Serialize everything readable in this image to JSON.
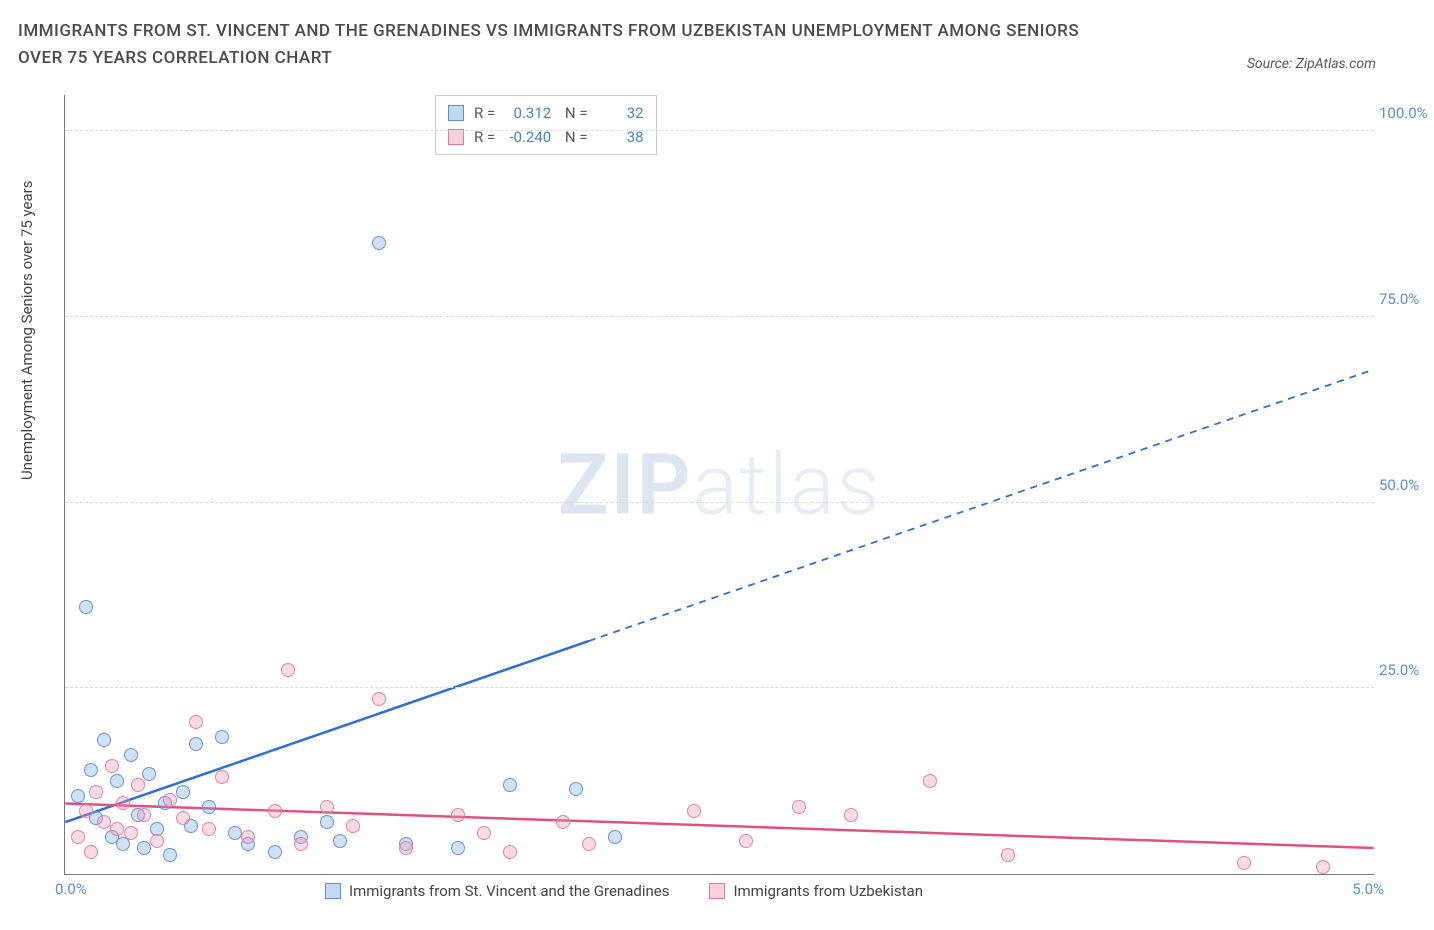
{
  "header": {
    "title": "IMMIGRANTS FROM ST. VINCENT AND THE GRENADINES VS IMMIGRANTS FROM UZBEKISTAN UNEMPLOYMENT AMONG SENIORS OVER 75 YEARS CORRELATION CHART",
    "source": "Source: ZipAtlas.com"
  },
  "chart": {
    "type": "scatter",
    "ylabel": "Unemployment Among Seniors over 75 years",
    "xrange": [
      0.0,
      5.0
    ],
    "yrange": [
      0.0,
      105.0
    ],
    "xticks": [
      "0.0%",
      "5.0%"
    ],
    "yticks": [
      {
        "v": 25.0,
        "label": "25.0%"
      },
      {
        "v": 50.0,
        "label": "50.0%"
      },
      {
        "v": 75.0,
        "label": "75.0%"
      },
      {
        "v": 100.0,
        "label": "100.0%"
      }
    ],
    "grid_color": "#d8d8d8",
    "background": "#ffffff",
    "series": [
      {
        "name": "Immigrants from St. Vincent and the Grenadines",
        "color_fill": "rgba(120,170,230,0.35)",
        "color_stroke": "#5b8fd6",
        "class": "blue",
        "R": "0.312",
        "N": "32",
        "trend": {
          "x1": 0.0,
          "y1": 7.0,
          "x2": 5.0,
          "y2": 68.0,
          "solid_until_x": 2.0,
          "color": "#2f6fd0"
        },
        "points": [
          [
            0.05,
            10.5
          ],
          [
            0.1,
            14.0
          ],
          [
            0.12,
            7.5
          ],
          [
            0.15,
            18.0
          ],
          [
            0.18,
            5.0
          ],
          [
            0.2,
            12.5
          ],
          [
            0.22,
            4.0
          ],
          [
            0.25,
            16.0
          ],
          [
            0.28,
            8.0
          ],
          [
            0.3,
            3.5
          ],
          [
            0.35,
            6.0
          ],
          [
            0.4,
            2.5
          ],
          [
            0.45,
            11.0
          ],
          [
            0.5,
            17.5
          ],
          [
            0.55,
            9.0
          ],
          [
            0.6,
            18.5
          ],
          [
            0.65,
            5.5
          ],
          [
            0.7,
            4.0
          ],
          [
            0.8,
            3.0
          ],
          [
            0.9,
            5.0
          ],
          [
            1.0,
            7.0
          ],
          [
            1.05,
            4.5
          ],
          [
            1.2,
            85.0
          ],
          [
            1.3,
            4.0
          ],
          [
            1.5,
            3.5
          ],
          [
            1.7,
            12.0
          ],
          [
            1.95,
            11.5
          ],
          [
            2.1,
            5.0
          ],
          [
            0.08,
            36.0
          ],
          [
            0.32,
            13.5
          ],
          [
            0.38,
            9.5
          ],
          [
            0.48,
            6.5
          ]
        ]
      },
      {
        "name": "Immigrants from Uzbekistan",
        "color_fill": "rgba(240,150,180,0.35)",
        "color_stroke": "#e07ba0",
        "class": "pink",
        "R": "-0.240",
        "N": "38",
        "trend": {
          "x1": 0.0,
          "y1": 9.5,
          "x2": 5.0,
          "y2": 3.5,
          "solid_until_x": 5.0,
          "color": "#e0517f"
        },
        "points": [
          [
            0.05,
            5.0
          ],
          [
            0.08,
            8.5
          ],
          [
            0.1,
            3.0
          ],
          [
            0.12,
            11.0
          ],
          [
            0.15,
            7.0
          ],
          [
            0.18,
            14.5
          ],
          [
            0.2,
            6.0
          ],
          [
            0.22,
            9.5
          ],
          [
            0.25,
            5.5
          ],
          [
            0.28,
            12.0
          ],
          [
            0.3,
            8.0
          ],
          [
            0.35,
            4.5
          ],
          [
            0.4,
            10.0
          ],
          [
            0.45,
            7.5
          ],
          [
            0.5,
            20.5
          ],
          [
            0.55,
            6.0
          ],
          [
            0.6,
            13.0
          ],
          [
            0.7,
            5.0
          ],
          [
            0.8,
            8.5
          ],
          [
            0.85,
            27.5
          ],
          [
            0.9,
            4.0
          ],
          [
            1.0,
            9.0
          ],
          [
            1.1,
            6.5
          ],
          [
            1.2,
            23.5
          ],
          [
            1.3,
            3.5
          ],
          [
            1.5,
            8.0
          ],
          [
            1.6,
            5.5
          ],
          [
            1.7,
            3.0
          ],
          [
            1.9,
            7.0
          ],
          [
            2.0,
            4.0
          ],
          [
            2.4,
            8.5
          ],
          [
            2.6,
            4.5
          ],
          [
            2.8,
            9.0
          ],
          [
            3.0,
            8.0
          ],
          [
            3.3,
            12.5
          ],
          [
            3.6,
            2.5
          ],
          [
            4.5,
            1.5
          ],
          [
            4.8,
            1.0
          ]
        ]
      }
    ],
    "watermark": {
      "bold": "ZIP",
      "light": "atlas"
    }
  },
  "legend_bottom": [
    "Immigrants from St. Vincent and the Grenadines",
    "Immigrants from Uzbekistan"
  ]
}
